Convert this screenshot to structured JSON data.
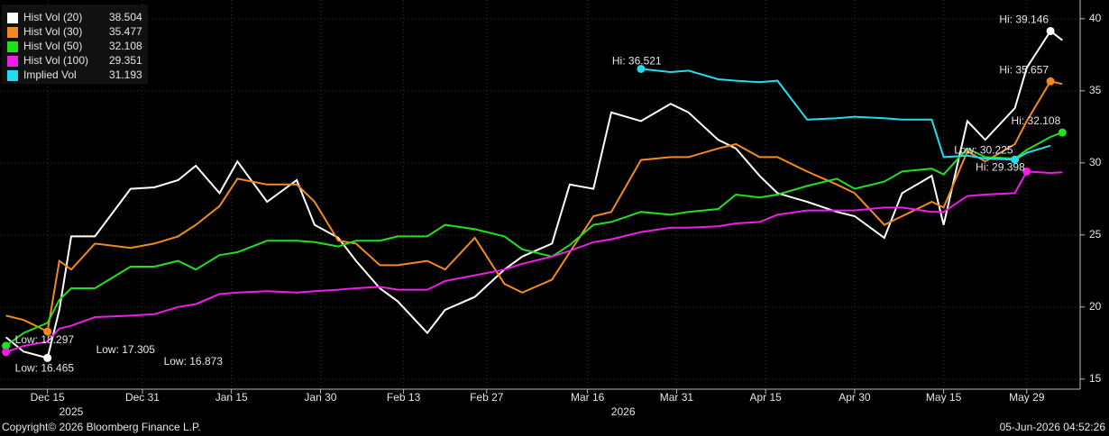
{
  "chart_data": {
    "type": "line",
    "x": [
      "2025-12-08",
      "2025-12-11",
      "2025-12-15",
      "2025-12-17",
      "2025-12-19",
      "2025-12-23",
      "2025-12-29",
      "2026-01-02",
      "2026-01-06",
      "2026-01-09",
      "2026-01-13",
      "2026-01-16",
      "2026-01-21",
      "2026-01-26",
      "2026-01-29",
      "2026-02-02",
      "2026-02-05",
      "2026-02-09",
      "2026-02-12",
      "2026-02-17",
      "2026-02-20",
      "2026-02-25",
      "2026-03-02",
      "2026-03-05",
      "2026-03-10",
      "2026-03-13",
      "2026-03-17",
      "2026-03-20",
      "2026-03-25",
      "2026-03-30",
      "2026-04-02",
      "2026-04-07",
      "2026-04-10",
      "2026-04-14",
      "2026-04-17",
      "2026-04-22",
      "2026-04-27",
      "2026-04-30",
      "2026-05-05",
      "2026-05-08",
      "2026-05-13",
      "2026-05-15",
      "2026-05-19",
      "2026-05-22",
      "2026-05-27",
      "2026-05-29",
      "2026-06-02",
      "2026-06-04"
    ],
    "xlim": [
      "2025-12-07",
      "2026-06-07"
    ],
    "xticks": [
      {
        "value": "2025-12-15",
        "label": "Dec 15"
      },
      {
        "value": "2025-12-31",
        "label": "Dec 31"
      },
      {
        "value": "2026-01-15",
        "label": "Jan 15"
      },
      {
        "value": "2026-01-30",
        "label": "Jan 30"
      },
      {
        "value": "2026-02-13",
        "label": "Feb 13"
      },
      {
        "value": "2026-02-27",
        "label": "Feb 27"
      },
      {
        "value": "2026-03-16",
        "label": "Mar 16"
      },
      {
        "value": "2026-03-31",
        "label": "Mar 31"
      },
      {
        "value": "2026-04-15",
        "label": "Apr 15"
      },
      {
        "value": "2026-04-30",
        "label": "Apr 30"
      },
      {
        "value": "2026-05-15",
        "label": "May 15"
      },
      {
        "value": "2026-05-29",
        "label": "May 29"
      }
    ],
    "year_labels": [
      {
        "value": "2025-12-19",
        "label": "2025"
      },
      {
        "value": "2026-03-22",
        "label": "2026"
      }
    ],
    "ylim": [
      14.3,
      41.3
    ],
    "yticks": [
      15,
      20,
      25,
      30,
      35,
      40
    ],
    "grid": true,
    "series": [
      {
        "name": "Hist Vol (20)",
        "color": "#ffffff",
        "values": [
          17.9,
          16.9,
          16.465,
          19.8,
          24.9,
          24.9,
          28.2,
          28.3,
          28.8,
          29.8,
          27.9,
          30.1,
          27.3,
          28.8,
          25.7,
          24.8,
          23.2,
          21.3,
          20.4,
          18.2,
          19.8,
          20.7,
          22.6,
          23.5,
          24.4,
          28.5,
          28.2,
          33.5,
          32.9,
          34.1,
          33.5,
          31.6,
          31.0,
          29.1,
          27.9,
          27.3,
          26.6,
          26.3,
          24.8,
          27.9,
          29.1,
          25.7,
          32.9,
          31.6,
          33.8,
          36.6,
          39.146,
          38.504
        ]
      },
      {
        "name": "Hist Vol (30)",
        "color": "#f28a1e",
        "values": [
          19.4,
          19.1,
          18.297,
          23.2,
          22.6,
          24.4,
          24.1,
          24.4,
          24.9,
          25.7,
          27.0,
          28.9,
          28.5,
          28.5,
          27.3,
          24.6,
          24.4,
          22.9,
          22.9,
          23.2,
          22.6,
          24.8,
          21.6,
          21.0,
          21.9,
          23.8,
          26.3,
          26.6,
          30.2,
          30.4,
          30.4,
          31.0,
          31.3,
          30.4,
          30.4,
          29.4,
          28.5,
          27.9,
          25.7,
          26.3,
          27.3,
          26.9,
          30.8,
          30.1,
          31.3,
          32.9,
          35.657,
          35.477
        ]
      },
      {
        "name": "Hist Vol (50)",
        "color": "#22e01e",
        "values": [
          17.305,
          18.2,
          18.9,
          20.5,
          21.3,
          21.3,
          22.8,
          22.8,
          23.2,
          22.6,
          23.6,
          23.8,
          24.6,
          24.6,
          24.5,
          24.2,
          24.6,
          24.6,
          24.9,
          24.9,
          25.7,
          25.4,
          24.9,
          24.0,
          23.5,
          24.3,
          25.7,
          25.9,
          26.6,
          26.4,
          26.6,
          26.8,
          27.8,
          27.6,
          27.8,
          28.4,
          28.9,
          28.2,
          28.7,
          29.4,
          29.6,
          29.2,
          31.0,
          30.4,
          30.3,
          30.9,
          31.8,
          32.108
        ]
      },
      {
        "name": "Hist Vol (100)",
        "color": "#ee1ee8",
        "values": [
          16.873,
          17.3,
          17.6,
          18.5,
          18.7,
          19.3,
          19.4,
          19.5,
          20.0,
          20.2,
          20.9,
          21.0,
          21.1,
          21.0,
          21.1,
          21.2,
          21.3,
          21.4,
          21.2,
          21.2,
          21.8,
          22.2,
          22.6,
          23.0,
          23.5,
          23.9,
          24.5,
          24.7,
          25.2,
          25.5,
          25.5,
          25.6,
          25.8,
          25.9,
          26.4,
          26.7,
          26.7,
          26.7,
          26.9,
          26.9,
          26.6,
          26.6,
          27.7,
          27.8,
          27.9,
          29.398,
          29.3,
          29.351
        ]
      },
      {
        "name": "Implied Vol",
        "color": "#22dced",
        "values": [
          null,
          null,
          null,
          null,
          null,
          null,
          null,
          null,
          null,
          null,
          null,
          null,
          null,
          null,
          null,
          null,
          null,
          null,
          null,
          null,
          null,
          null,
          null,
          null,
          null,
          null,
          null,
          null,
          36.521,
          36.3,
          36.4,
          35.8,
          35.7,
          35.6,
          35.7,
          33.0,
          33.1,
          33.2,
          33.1,
          33.0,
          33.0,
          30.4,
          30.5,
          30.3,
          30.225,
          30.7,
          31.193,
          null
        ]
      }
    ],
    "annotations": [
      {
        "text": "Hi: 39.146",
        "x": "2026-06-02",
        "y": 39.146,
        "color": "#ffffff"
      },
      {
        "text": "Hi: 35.657",
        "x": "2026-06-02",
        "y": 35.657,
        "color": "#f28a1e"
      },
      {
        "text": "Hi: 32.108",
        "x": "2026-06-04",
        "y": 32.108,
        "color": "#22e01e"
      },
      {
        "text": "Hi: 29.398",
        "x": "2026-05-29",
        "y": 29.398,
        "color": "#ee1ee8"
      },
      {
        "text": "Hi: 36.521",
        "x": "2026-03-25",
        "y": 36.521,
        "color": "#22dced"
      },
      {
        "text": "Low: 30.225",
        "x": "2026-05-27",
        "y": 30.225,
        "color": "#22dced"
      },
      {
        "text": "Low: 16.465",
        "x": "2025-12-15",
        "y": 16.465,
        "color": "#ffffff"
      },
      {
        "text": "Low: 18.297",
        "x": "2025-12-15",
        "y": 18.297,
        "color": "#f28a1e"
      },
      {
        "text": "Low: 17.305",
        "x": "2025-12-08",
        "y": 17.305,
        "color": "#22e01e"
      },
      {
        "text": "Low: 16.873",
        "x": "2025-12-08",
        "y": 16.873,
        "color": "#ee1ee8"
      }
    ],
    "footer_left": "Copyright© 2026 Bloomberg Finance L.P.",
    "footer_right": "05-Jun-2026 04:52:26"
  }
}
